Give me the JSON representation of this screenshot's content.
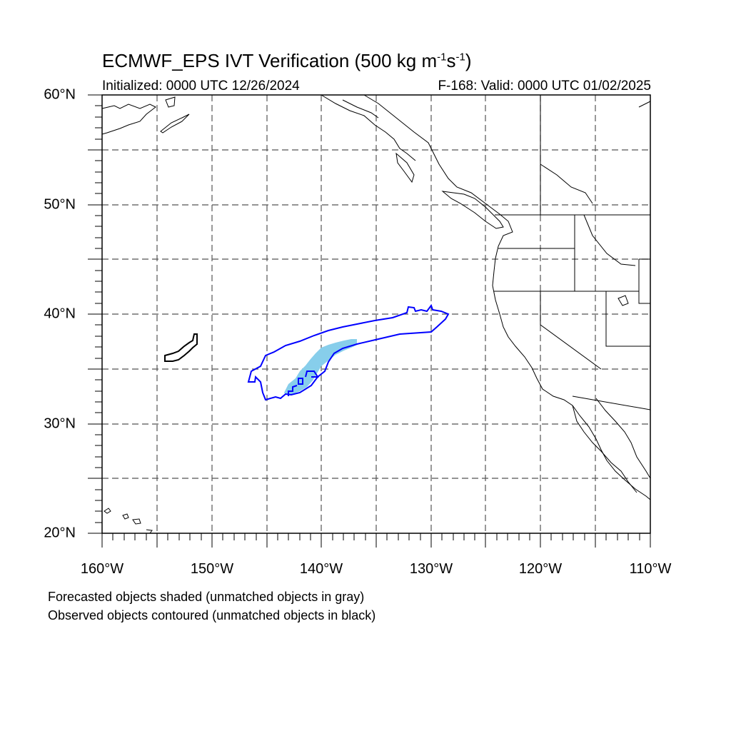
{
  "title": {
    "prefix": "ECMWF_EPS IVT Verification (500 kg m",
    "exp1": "-1",
    "mid": "s",
    "exp2": "-1",
    "suffix": ")"
  },
  "subtitle_left": "Initialized: 0000 UTC 12/26/2024",
  "subtitle_right": "F-168: Valid: 0000 UTC 01/02/2025",
  "lat_labels": [
    "60°N",
    "50°N",
    "40°N",
    "30°N",
    "20°N"
  ],
  "lon_labels": [
    "160°W",
    "150°W",
    "140°W",
    "130°W",
    "120°W",
    "110°W"
  ],
  "captions": [
    "Forecasted objects shaded (unmatched objects in gray)",
    "Observed objects contoured (unmatched objects in black)"
  ],
  "colors": {
    "forecast_shade": "#87ceeb",
    "matched_contour": "#0000ff",
    "unmatched_contour": "#000000",
    "grid": "#555555",
    "coast": "#000000"
  }
}
